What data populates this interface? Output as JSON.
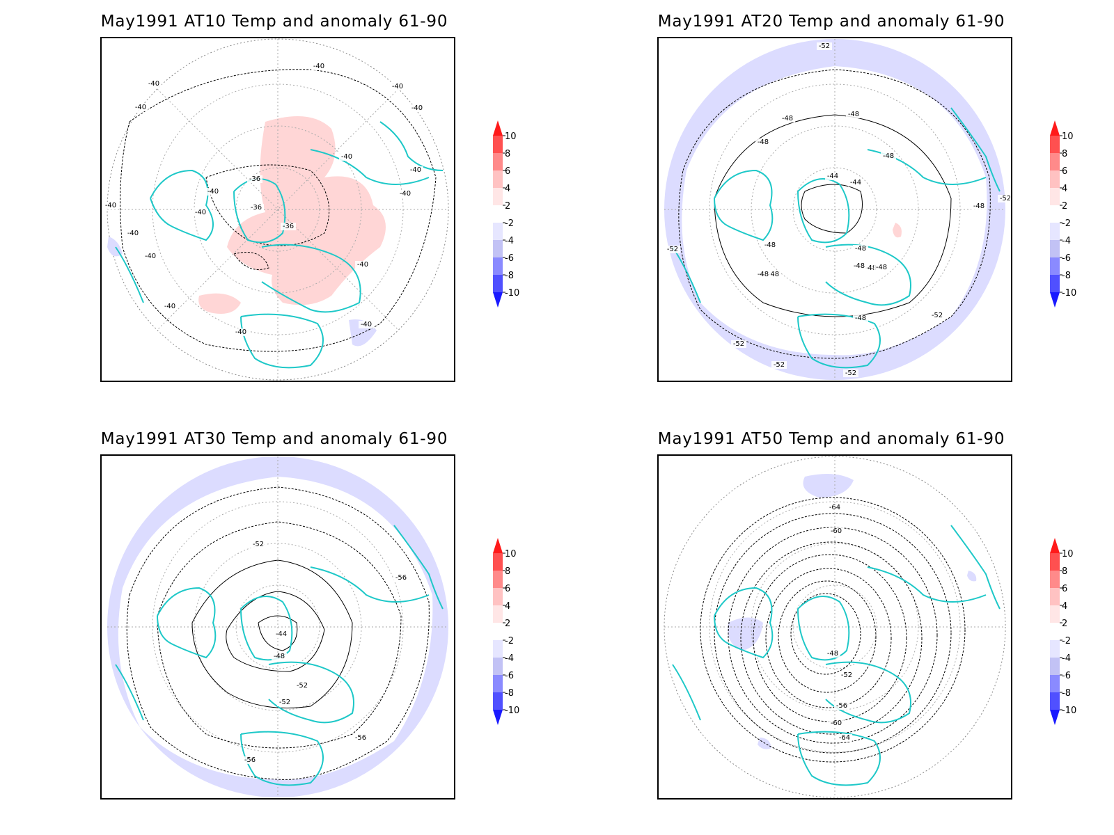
{
  "panels": [
    {
      "id": "p1",
      "title": "May1991 AT10 Temp and anomaly 61-90",
      "contour_labels": [
        "-40",
        "-40",
        "-40",
        "-40",
        "-40",
        "-40",
        "-40",
        "-40",
        "-40",
        "-40",
        "-40",
        "-36",
        "-36",
        "-36",
        "-40",
        "-40",
        "-40",
        "-40",
        "-40",
        "-40"
      ]
    },
    {
      "id": "p2",
      "title": "May1991 AT20 Temp and anomaly 61-90",
      "contour_labels": [
        "-52",
        "-48",
        "-48",
        "-48",
        "-48",
        "-44",
        "-44",
        "-48",
        "-48",
        "-48",
        "-48",
        "-48",
        "-48",
        "-48",
        "-48",
        "-48",
        "-52",
        "-52",
        "-52",
        "-52",
        "-52",
        "-52"
      ]
    },
    {
      "id": "p3",
      "title": "May1991 AT30 Temp and anomaly 61-90",
      "contour_labels": [
        "-52",
        "-56",
        "-44",
        "-48",
        "-52",
        "-52",
        "-56",
        "-56"
      ]
    },
    {
      "id": "p4",
      "title": "May1991 AT50 Temp and anomaly 61-90",
      "contour_labels": [
        "-64",
        "-60",
        "-48",
        "-52",
        "-56",
        "-60",
        "-64"
      ]
    }
  ],
  "colorbar": {
    "labels": [
      "10",
      "8",
      "6",
      "4",
      "2",
      "-2",
      "-4",
      "-6",
      "-8",
      "-10"
    ],
    "colors": [
      "#ff1a1a",
      "#ff5050",
      "#ff8a8a",
      "#ffc2c2",
      "#ffe6e6",
      "#ffffff",
      "#e6e6ff",
      "#c2c2f5",
      "#8a8aff",
      "#5050ff",
      "#1a1aff"
    ]
  },
  "chart_data": [
    {
      "type": "heatmap",
      "title": "May1991 AT10 Temp and anomaly 61-90",
      "contour_levels": [
        -40,
        -36
      ],
      "anomaly_levels": [
        -10,
        -8,
        -6,
        -4,
        -2,
        2,
        4,
        6,
        8,
        10
      ]
    },
    {
      "type": "heatmap",
      "title": "May1991 AT20 Temp and anomaly 61-90",
      "contour_levels": [
        -52,
        -48,
        -44
      ],
      "anomaly_levels": [
        -10,
        -8,
        -6,
        -4,
        -2,
        2,
        4,
        6,
        8,
        10
      ]
    },
    {
      "type": "heatmap",
      "title": "May1991 AT30 Temp and anomaly 61-90",
      "contour_levels": [
        -56,
        -52,
        -48,
        -44
      ],
      "anomaly_levels": [
        -10,
        -8,
        -6,
        -4,
        -2,
        2,
        4,
        6,
        8,
        10
      ]
    },
    {
      "type": "heatmap",
      "title": "May1991 AT50 Temp and anomaly 61-90",
      "contour_levels": [
        -64,
        -60,
        -56,
        -52,
        -48
      ],
      "anomaly_levels": [
        -10,
        -8,
        -6,
        -4,
        -2,
        2,
        4,
        6,
        8,
        10
      ]
    }
  ]
}
